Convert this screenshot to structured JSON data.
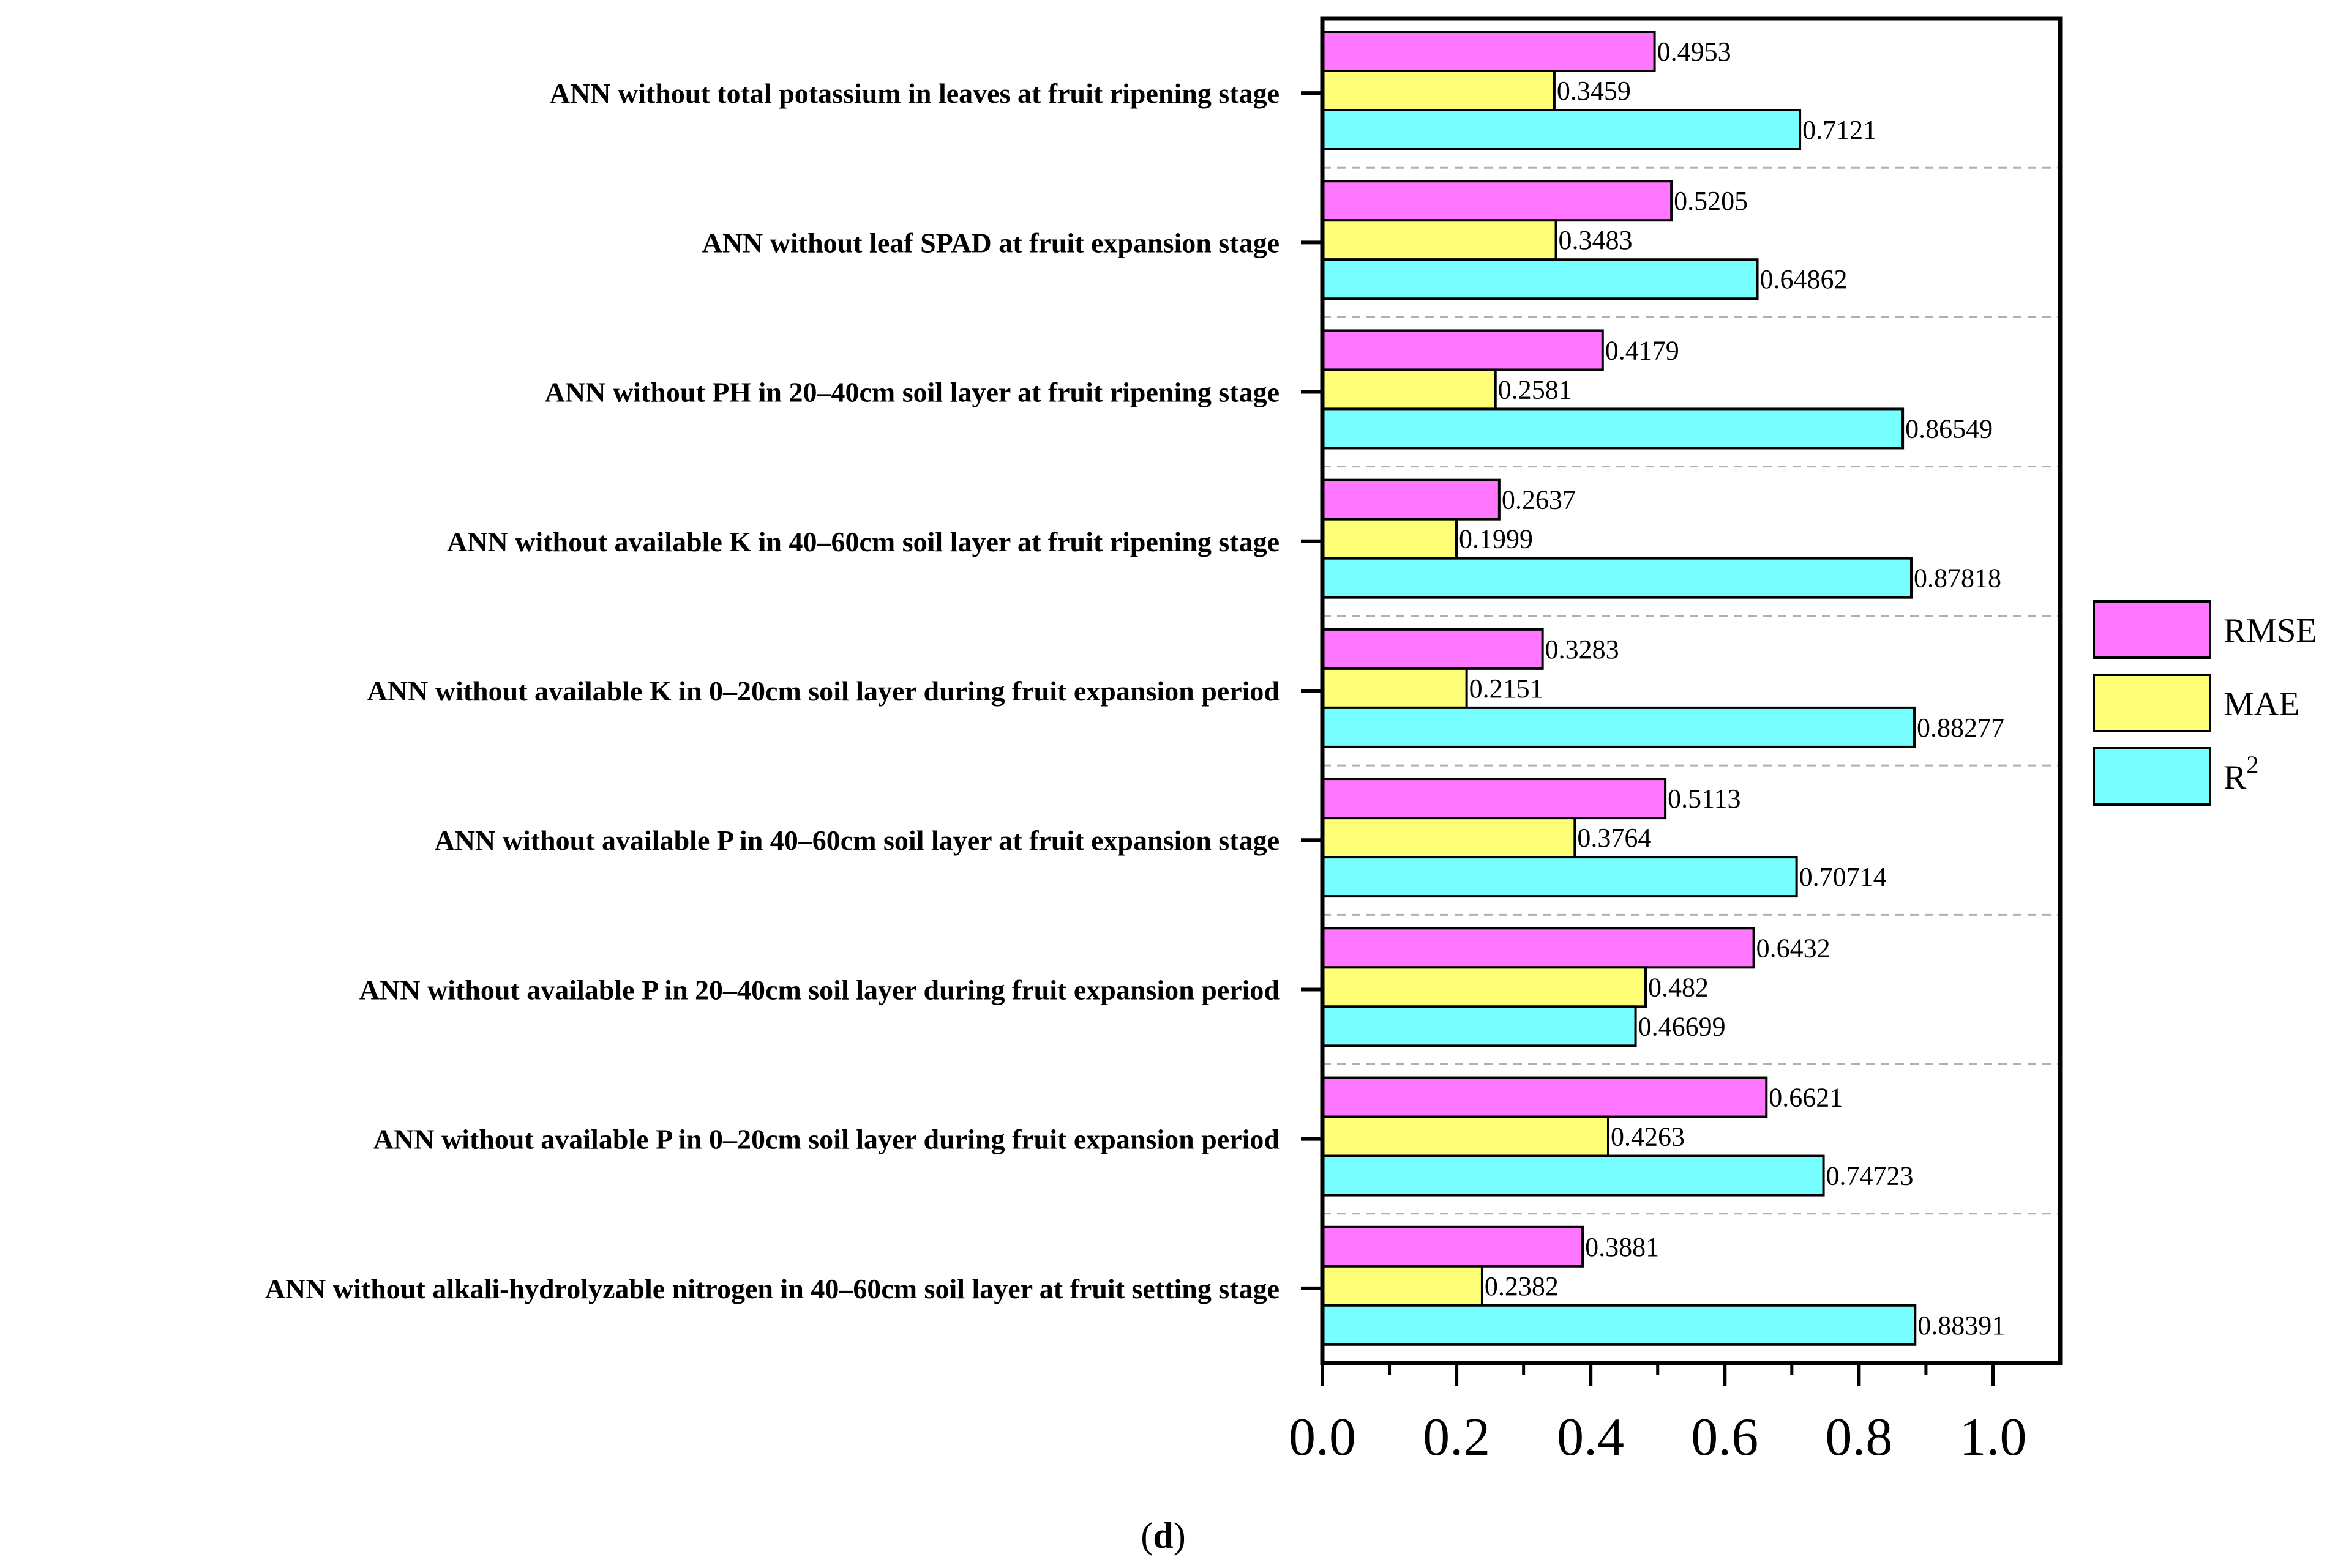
{
  "chart_data": {
    "type": "bar",
    "orientation": "horizontal",
    "categories": [
      "ANN without total potassium in leaves at fruit ripening stage",
      "ANN without leaf SPAD at fruit expansion stage",
      "ANN without PH in 20–40cm soil layer at fruit ripening stage",
      "ANN without available K in 40–60cm soil layer at fruit ripening stage",
      "ANN without available K in 0–20cm soil layer during fruit expansion period",
      "ANN without available P in 40–60cm soil layer at fruit expansion stage",
      "ANN without available P in 20–40cm soil layer during fruit expansion period",
      "ANN without available P in 0–20cm soil layer during fruit expansion period",
      "ANN without alkali-hydrolyzable nitrogen in 40–60cm soil layer at fruit setting stage"
    ],
    "series": [
      {
        "name": "RMSE",
        "color": "#ff77ff",
        "values": [
          0.4953,
          0.5205,
          0.4179,
          0.2637,
          0.3283,
          0.5113,
          0.6432,
          0.6621,
          0.3881
        ],
        "labels": [
          "0.4953",
          "0.5205",
          "0.4179",
          "0.2637",
          "0.3283",
          "0.5113",
          "0.6432",
          "0.6621",
          "0.3881"
        ]
      },
      {
        "name": "MAE",
        "color": "#ffff77",
        "values": [
          0.3459,
          0.3483,
          0.2581,
          0.1999,
          0.2151,
          0.3764,
          0.482,
          0.4263,
          0.2382
        ],
        "labels": [
          "0.3459",
          "0.3483",
          "0.2581",
          "0.1999",
          "0.2151",
          "0.3764",
          "0.482",
          "0.4263",
          "0.2382"
        ]
      },
      {
        "name": "R",
        "superscript": "2",
        "color": "#77ffff",
        "values": [
          0.7121,
          0.64862,
          0.86549,
          0.87818,
          0.88277,
          0.70714,
          0.46699,
          0.74723,
          0.88391
        ],
        "labels": [
          "0.7121",
          "0.64862",
          "0.86549",
          "0.87818",
          "0.88277",
          "0.70714",
          "0.46699",
          "0.74723",
          "0.88391"
        ]
      }
    ],
    "xlim": [
      0,
      1.1
    ],
    "xticks": [
      0.0,
      0.2,
      0.4,
      0.6,
      0.8,
      1.0
    ],
    "xtick_labels": [
      "0.0",
      "0.2",
      "0.4",
      "0.6",
      "0.8",
      "1.0"
    ],
    "legend_position": "right",
    "grid": "dashed horizontal separators",
    "caption": {
      "open": "(",
      "letter": "d",
      "close": ")"
    }
  }
}
